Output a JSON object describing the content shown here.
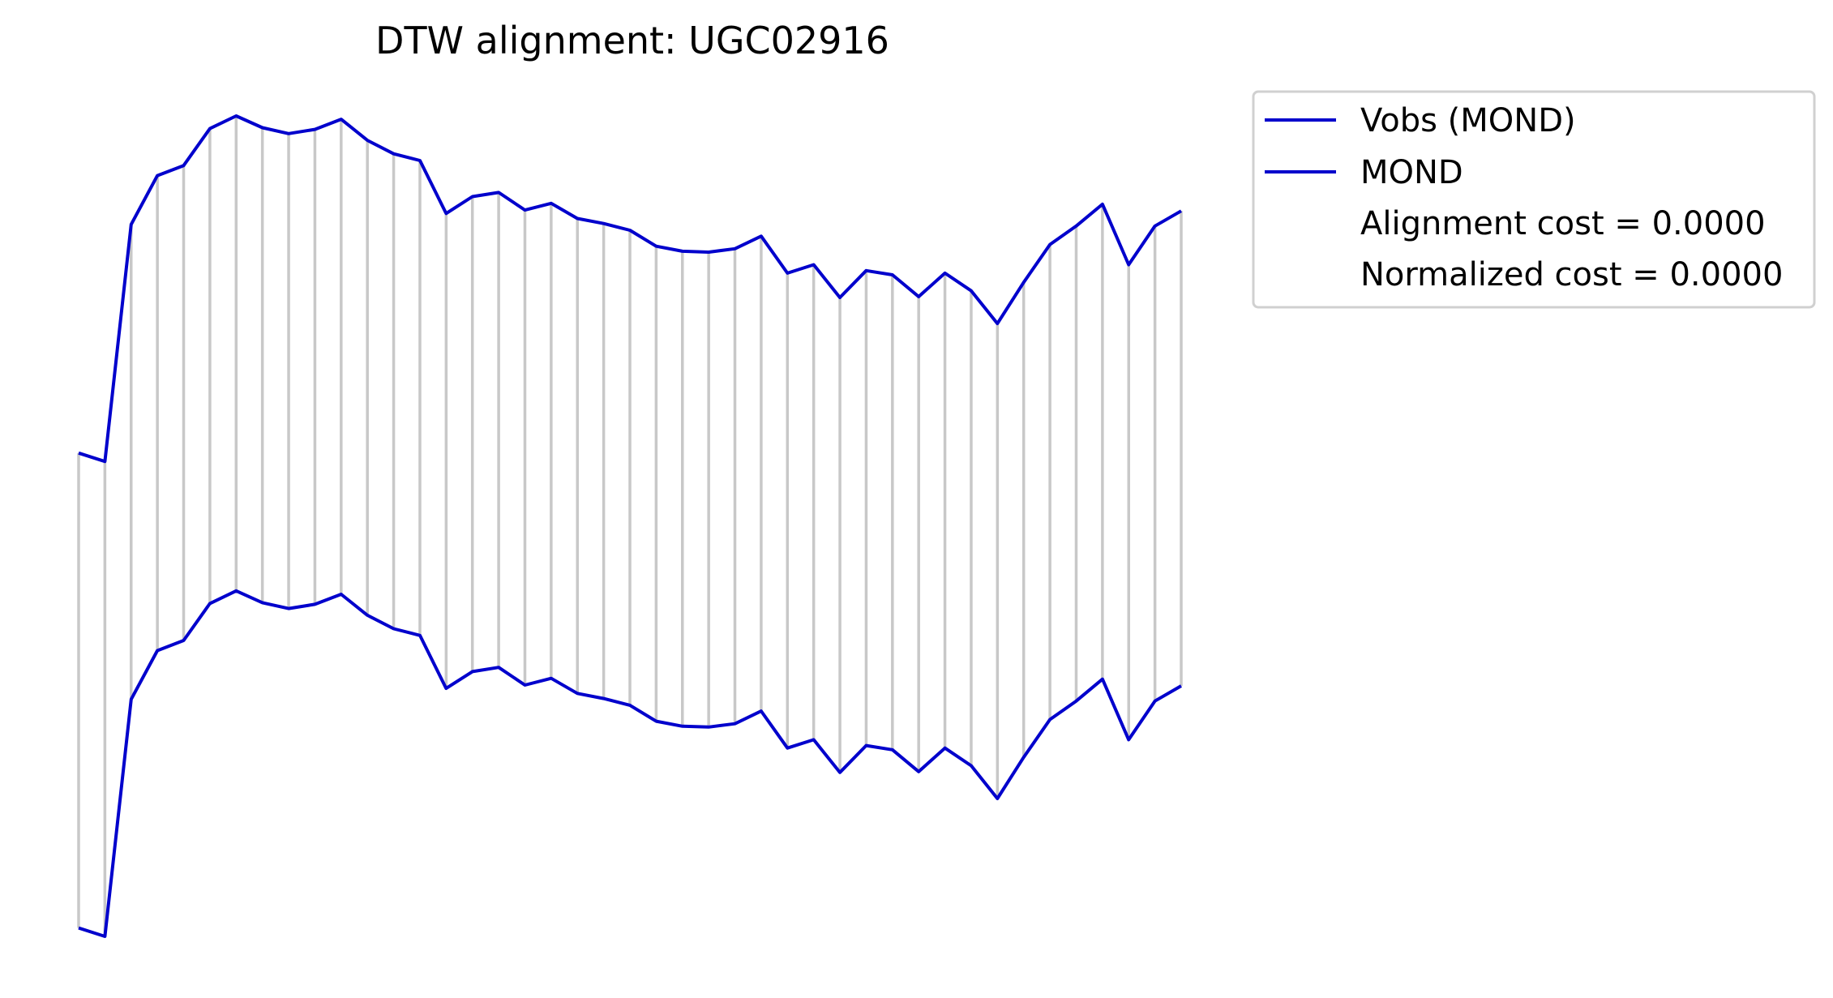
{
  "chart_data": {
    "type": "line",
    "title": "DTW alignment: UGC02916",
    "axes_visible": false,
    "grid": false,
    "legend_position": "outside-right-top",
    "colors": {
      "series": "#0000cc",
      "connector": "#c8c8c8",
      "legend_frame": "#d0d0d0"
    },
    "x": [
      0,
      1,
      2,
      3,
      4,
      5,
      6,
      7,
      8,
      9,
      10,
      11,
      12,
      13,
      14,
      15,
      16,
      17,
      18,
      19,
      20,
      21,
      22,
      23,
      24,
      25,
      26,
      27,
      28,
      29,
      30,
      31,
      32,
      33,
      34,
      35,
      36,
      37,
      38,
      39,
      40,
      41,
      42
    ],
    "series": [
      {
        "name": "Vobs (MOND)",
        "values": [
          0.532,
          0.522,
          0.804,
          0.862,
          0.874,
          0.918,
          0.933,
          0.919,
          0.912,
          0.917,
          0.929,
          0.904,
          0.888,
          0.88,
          0.817,
          0.837,
          0.842,
          0.821,
          0.829,
          0.811,
          0.805,
          0.797,
          0.778,
          0.772,
          0.771,
          0.775,
          0.79,
          0.746,
          0.756,
          0.717,
          0.749,
          0.744,
          0.718,
          0.746,
          0.725,
          0.686,
          0.735,
          0.78,
          0.802,
          0.828,
          0.756,
          0.802,
          0.82
        ]
      },
      {
        "name": "MOND",
        "values": [
          -0.033,
          -0.043,
          0.239,
          0.297,
          0.309,
          0.353,
          0.368,
          0.354,
          0.347,
          0.352,
          0.364,
          0.339,
          0.323,
          0.315,
          0.252,
          0.272,
          0.277,
          0.256,
          0.264,
          0.246,
          0.24,
          0.232,
          0.213,
          0.207,
          0.206,
          0.21,
          0.225,
          0.181,
          0.191,
          0.152,
          0.184,
          0.179,
          0.153,
          0.181,
          0.16,
          0.121,
          0.17,
          0.215,
          0.237,
          0.263,
          0.191,
          0.237,
          0.255
        ]
      }
    ],
    "connections": "index-to-index",
    "legend": {
      "entries": [
        {
          "label": "Vobs (MOND)",
          "marker": "line"
        },
        {
          "label": "MOND",
          "marker": "line"
        },
        {
          "label": "Alignment cost = 0.0000",
          "marker": "none"
        },
        {
          "label": "Normalized cost = 0.0000",
          "marker": "none"
        }
      ]
    }
  }
}
